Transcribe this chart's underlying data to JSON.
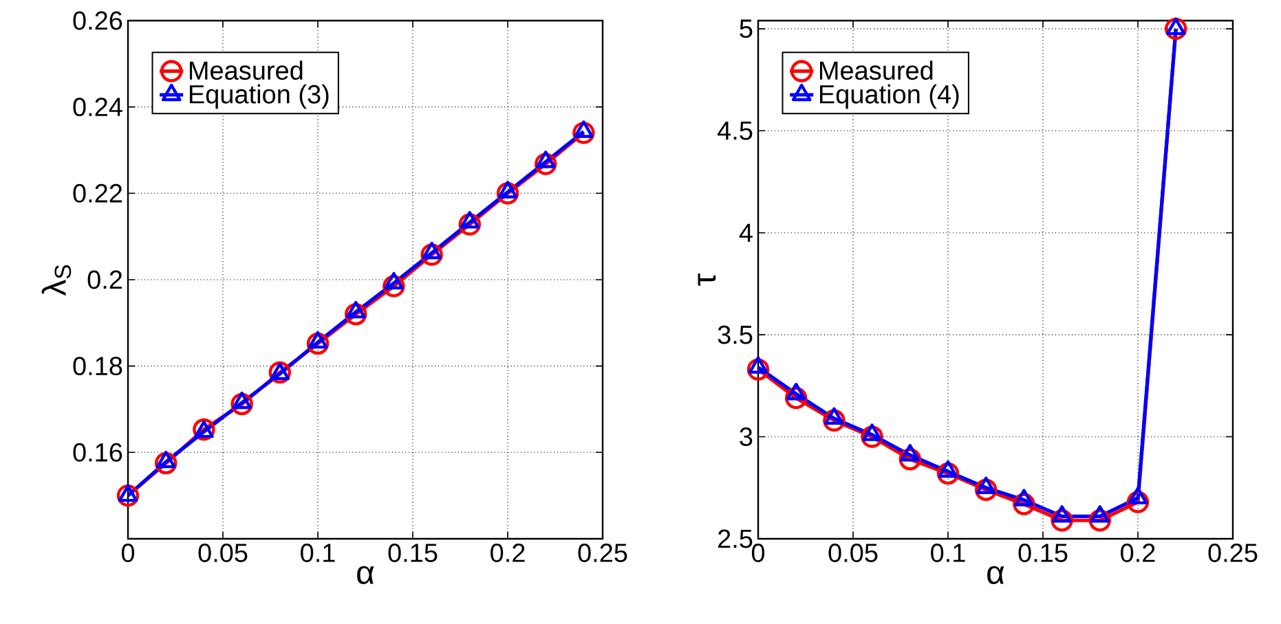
{
  "chart_data": [
    {
      "type": "line",
      "xlabel": "α",
      "ylabel": "λ$_{S}$",
      "x": [
        0,
        0.02,
        0.04,
        0.06,
        0.08,
        0.1,
        0.12,
        0.14,
        0.16,
        0.18,
        0.2,
        0.22,
        0.24
      ],
      "series": [
        {
          "name": "Measured",
          "color": "#ff0000",
          "marker": "circle",
          "values": [
            0.15,
            0.1575,
            0.1653,
            0.1712,
            0.1785,
            0.1852,
            0.192,
            0.1985,
            0.2058,
            0.2128,
            0.22,
            0.2268,
            0.234
          ]
        },
        {
          "name": "Equation (3)",
          "color": "#0000ff",
          "marker": "triangle",
          "values": [
            0.15,
            0.1578,
            0.1648,
            0.1715,
            0.1782,
            0.1855,
            0.1925,
            0.1992,
            0.2062,
            0.2133,
            0.2203,
            0.2273,
            0.2343
          ]
        }
      ],
      "xlim": [
        0,
        0.25
      ],
      "ylim": [
        0.14,
        0.26
      ],
      "xticks": [
        0,
        0.05,
        0.1,
        0.15,
        0.2,
        0.25
      ],
      "yticks": [
        0.16,
        0.18,
        0.2,
        0.22,
        0.24,
        0.26
      ],
      "grid": true,
      "legend": "top left",
      "line_style": "solid"
    },
    {
      "type": "line",
      "xlabel": "α",
      "ylabel": "τ",
      "x": [
        0,
        0.02,
        0.04,
        0.06,
        0.08,
        0.1,
        0.12,
        0.14,
        0.16,
        0.18,
        0.2,
        0.22
      ],
      "series": [
        {
          "name": "Measured",
          "color": "#ff0000",
          "marker": "circle",
          "values": [
            3.33,
            3.19,
            3.08,
            3.0,
            2.89,
            2.82,
            2.74,
            2.67,
            2.59,
            2.59,
            2.68,
            5.0
          ]
        },
        {
          "name": "Equation (4)",
          "color": "#0000ff",
          "marker": "triangle",
          "values": [
            3.34,
            3.21,
            3.09,
            3.01,
            2.91,
            2.83,
            2.75,
            2.69,
            2.61,
            2.61,
            2.7,
            5.0
          ]
        }
      ],
      "xlim": [
        0,
        0.25
      ],
      "ylim": [
        2.5,
        5.04
      ],
      "xticks": [
        0,
        0.05,
        0.1,
        0.15,
        0.2,
        0.25
      ],
      "yticks": [
        2.5,
        3,
        3.5,
        4,
        4.5,
        5
      ],
      "grid": true,
      "legend": "top left",
      "line_style": "solid"
    }
  ]
}
